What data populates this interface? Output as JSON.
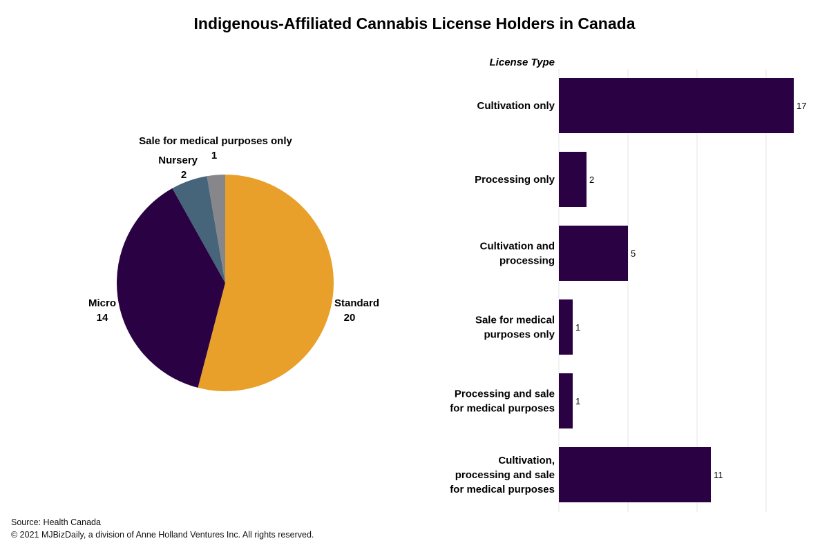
{
  "chart_data": [
    {
      "type": "pie",
      "title": "Indigenous-Affiliated Cannabis License Holders in Canada",
      "slices": [
        {
          "label": "Standard",
          "value": 20,
          "color": "#E9A02A"
        },
        {
          "label": "Micro",
          "value": 14,
          "color": "#2A0244"
        },
        {
          "label": "Nursery",
          "value": 2,
          "color": "#46647A"
        },
        {
          "label": "Sale for medical purposes only",
          "value": 1,
          "color": "#87878B"
        }
      ]
    },
    {
      "type": "bar",
      "orientation": "horizontal",
      "ylabel": "License Type",
      "categories": [
        [
          "Cultivation only"
        ],
        [
          "Processing only"
        ],
        [
          "Cultivation and",
          "processing"
        ],
        [
          "Sale for medical",
          "purposes only"
        ],
        [
          "Processing and sale",
          "for medical purposes"
        ],
        [
          "Cultivation,",
          "processing and sale",
          "for medical purposes"
        ]
      ],
      "values": [
        17,
        2,
        5,
        1,
        1,
        11
      ],
      "xlim": [
        0,
        20
      ],
      "grid": true,
      "bar_color": "#2A0244",
      "gridline_color": "#E6E6E6"
    }
  ],
  "footer": {
    "source": "Source: Health Canada",
    "copyright": "© 2021 MJBizDaily, a division of Anne Holland Ventures Inc. All rights reserved."
  }
}
